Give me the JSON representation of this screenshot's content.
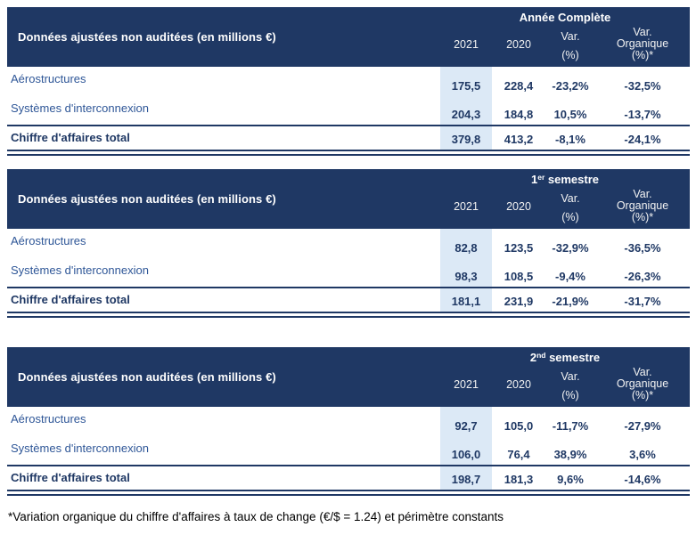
{
  "colors": {
    "header_bg": "#1F3864",
    "header_text": "#FFFFFF",
    "row_label_text": "#2E5697",
    "value_text": "#1F3864",
    "highlight_2021_bg": "#DCE9F6",
    "rule": "#1F3864",
    "footnote_text": "#000000",
    "page_bg": "#FFFFFF"
  },
  "column_headers": {
    "y2021": "2021",
    "y2020": "2020",
    "var_line1": "Var.",
    "var_line2": "(%)",
    "varorg_line1": "Var.",
    "varorg_line2": "Organique",
    "varorg_line3": "(%)*"
  },
  "tables": [
    {
      "row_header": "Données ajustées non auditées (en millions €)",
      "period": {
        "pre": "Année Complète",
        "sup": "",
        "post": ""
      },
      "rows": [
        {
          "label": "Aérostructures",
          "v2021": "175,5",
          "v2020": "228,4",
          "var_pct": "-23,2%",
          "var_org": "-32,5%"
        },
        {
          "label": "Systèmes d'interconnexion",
          "v2021": "204,3",
          "v2020": "184,8",
          "var_pct": "10,5%",
          "var_org": "-13,7%"
        }
      ],
      "total_row": {
        "label": "Chiffre d'affaires total",
        "v2021": "379,8",
        "v2020": "413,2",
        "var_pct": "-8,1%",
        "var_org": "-24,1%"
      }
    },
    {
      "row_header": "Données ajustées non auditées (en millions €)",
      "period": {
        "pre": "1",
        "sup": "er",
        "post": " semestre"
      },
      "rows": [
        {
          "label": "Aérostructures",
          "v2021": "82,8",
          "v2020": "123,5",
          "var_pct": "-32,9%",
          "var_org": "-36,5%"
        },
        {
          "label": "Systèmes d'interconnexion",
          "v2021": "98,3",
          "v2020": "108,5",
          "var_pct": "-9,4%",
          "var_org": "-26,3%"
        }
      ],
      "total_row": {
        "label": "Chiffre d'affaires total",
        "v2021": "181,1",
        "v2020": "231,9",
        "var_pct": "-21,9%",
        "var_org": "-31,7%"
      }
    },
    {
      "row_header": "Données ajustées non auditées (en millions €)",
      "period": {
        "pre": "2",
        "sup": "nd",
        "post": " semestre"
      },
      "rows": [
        {
          "label": "Aérostructures",
          "v2021": "92,7",
          "v2020": "105,0",
          "var_pct": "-11,7%",
          "var_org": "-27,9%"
        },
        {
          "label": "Systèmes d'interconnexion",
          "v2021": "106,0",
          "v2020": "76,4",
          "var_pct": "38,9%",
          "var_org": "3,6%"
        }
      ],
      "total_row": {
        "label": "Chiffre d'affaires total",
        "v2021": "198,7",
        "v2020": "181,3",
        "var_pct": "9,6%",
        "var_org": "-14,6%"
      }
    }
  ],
  "footnote": "*Variation organique du chiffre d'affaires à taux de change (€/$ = 1.24) et périmètre constants"
}
